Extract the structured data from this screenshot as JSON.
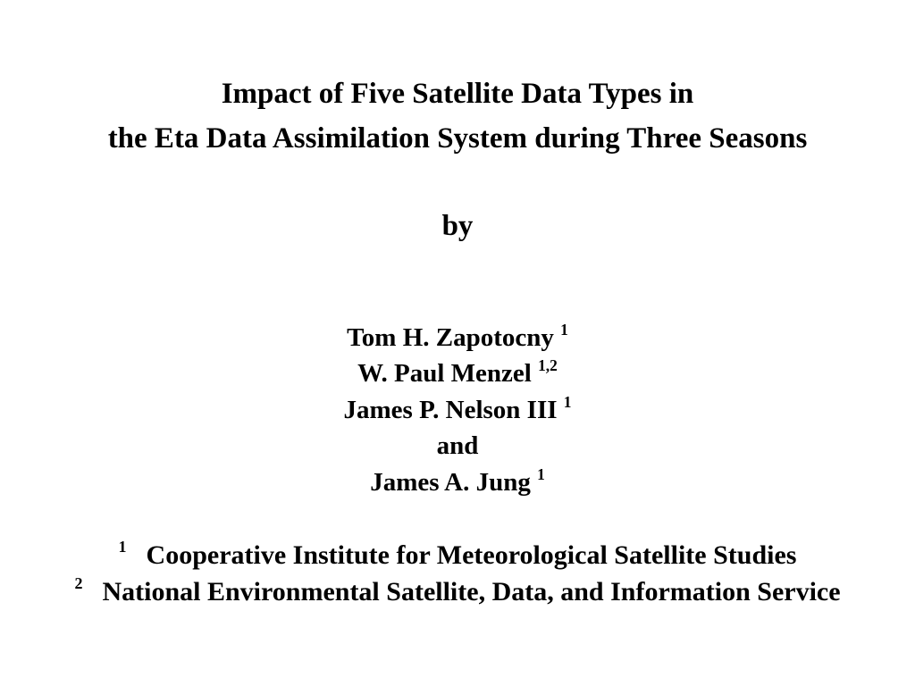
{
  "title": {
    "line1": "Impact of Five Satellite Data Types in",
    "line2": "the Eta Data Assimilation System during Three Seasons"
  },
  "by": "by",
  "authors": [
    {
      "name": "Tom H. Zapotocny",
      "sup": "1"
    },
    {
      "name": "W. Paul Menzel",
      "sup": "1,2"
    },
    {
      "name": "James P. Nelson III",
      "sup": "1"
    },
    {
      "name": "and",
      "sup": ""
    },
    {
      "name": "James A. Jung",
      "sup": "1"
    }
  ],
  "affiliations": [
    {
      "num": "1",
      "text": "Cooperative Institute for Meteorological Satellite Studies"
    },
    {
      "num": "2",
      "text": "National Environmental Satellite, Data, and Information Service"
    }
  ]
}
